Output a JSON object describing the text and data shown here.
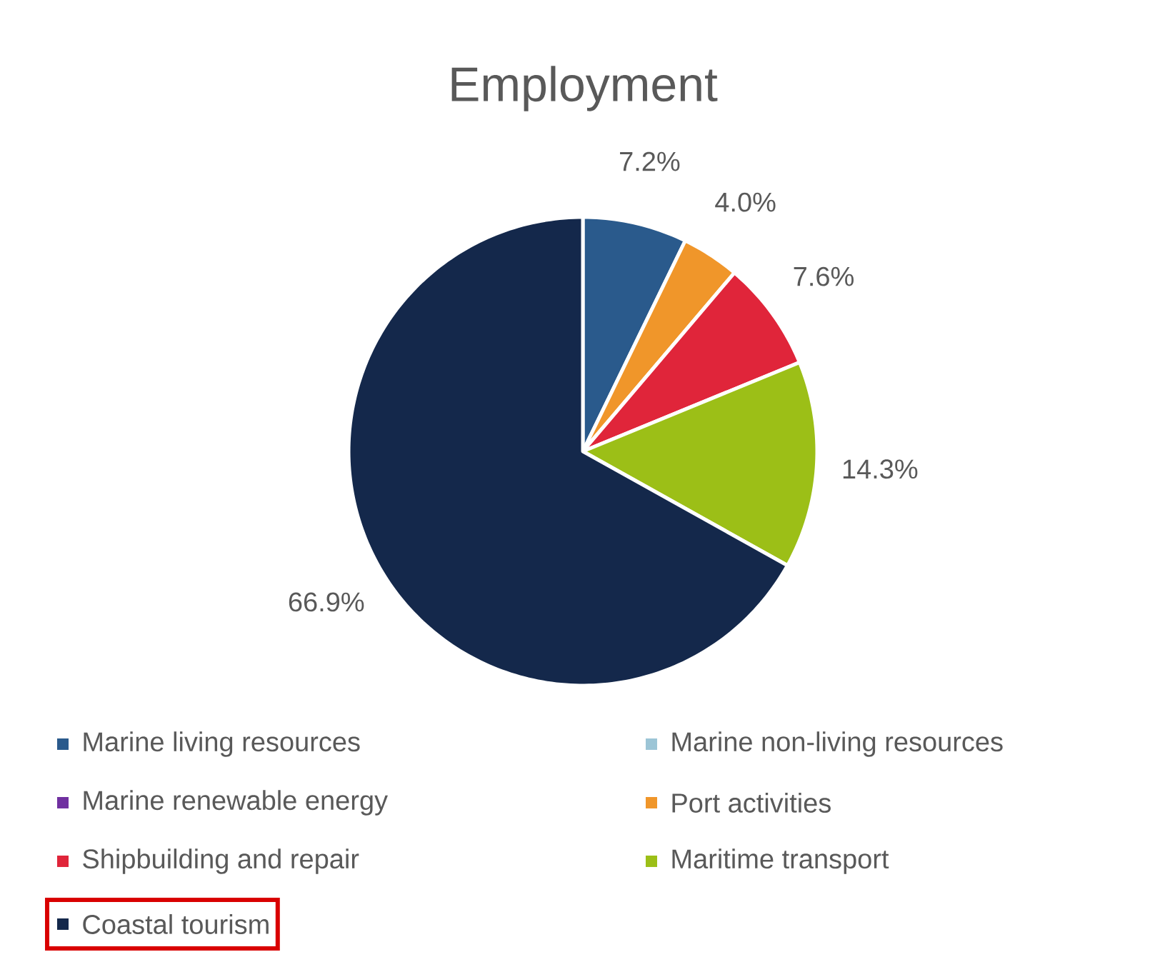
{
  "chart_data": {
    "type": "pie",
    "title": "Employment",
    "categories": [
      "Marine living resources",
      "Marine non-living resources",
      "Marine renewable energy",
      "Port activities",
      "Shipbuilding and repair",
      "Maritime transport",
      "Coastal tourism"
    ],
    "values": [
      7.2,
      0,
      0,
      4.0,
      7.6,
      14.3,
      66.9
    ],
    "value_labels": [
      "7.2%",
      null,
      null,
      "4.0%",
      "7.6%",
      "14.3%",
      "66.9%"
    ],
    "colors": [
      "#2a5a8c",
      "#9cc5d6",
      "#7030a0",
      "#f0962a",
      "#e0253a",
      "#9cbf17",
      "#14284b"
    ],
    "legend": "bottom"
  }
}
